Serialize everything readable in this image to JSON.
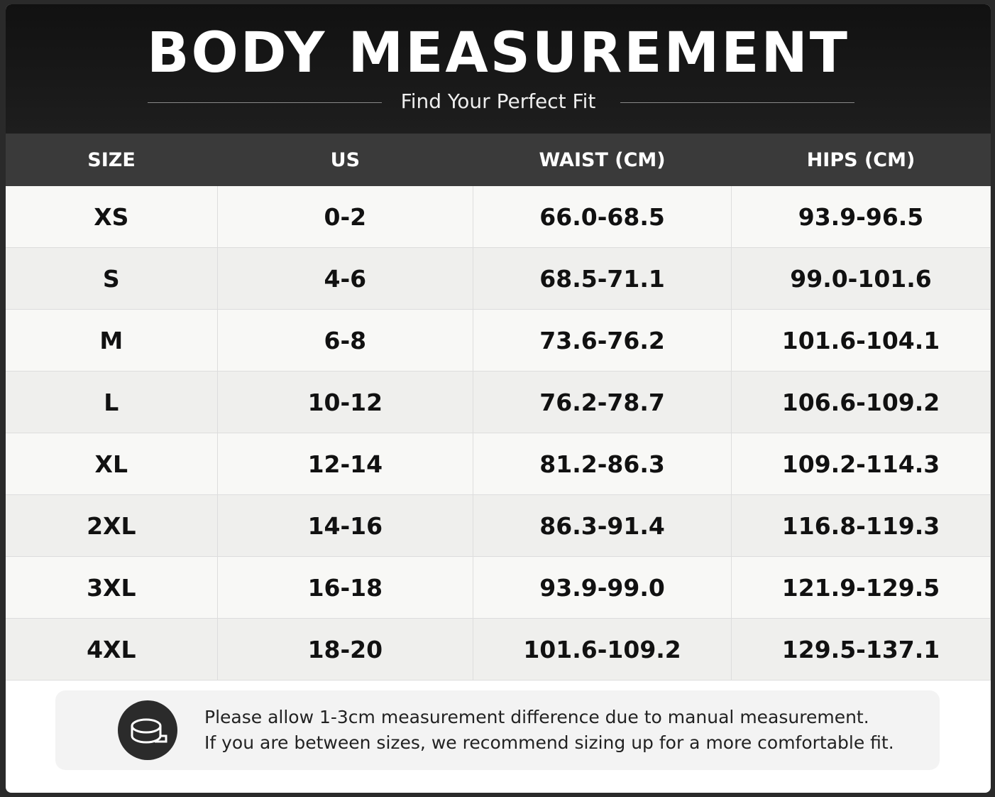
{
  "header": {
    "title": "BODY MEASUREMENT",
    "subtitle": "Find Your Perfect Fit"
  },
  "table": {
    "columns": [
      "SIZE",
      "US",
      "WAIST (CM)",
      "HIPS (CM)"
    ],
    "rows": [
      [
        "XS",
        "0-2",
        "66.0-68.5",
        "93.9-96.5"
      ],
      [
        "S",
        "4-6",
        "68.5-71.1",
        "99.0-101.6"
      ],
      [
        "M",
        "6-8",
        "73.6-76.2",
        "101.6-104.1"
      ],
      [
        "L",
        "10-12",
        "76.2-78.7",
        "106.6-109.2"
      ],
      [
        "XL",
        "12-14",
        "81.2-86.3",
        "109.2-114.3"
      ],
      [
        "2XL",
        "14-16",
        "86.3-91.4",
        "116.8-119.3"
      ],
      [
        "3XL",
        "16-18",
        "93.9-99.0",
        "121.9-129.5"
      ],
      [
        "4XL",
        "18-20",
        "101.6-109.2",
        "129.5-137.1"
      ]
    ]
  },
  "note": {
    "lines": [
      "Please allow 1-3cm measurement difference due to manual measurement.",
      "If you are between sizes, we recommend sizing up for a more comfortable fit."
    ]
  }
}
